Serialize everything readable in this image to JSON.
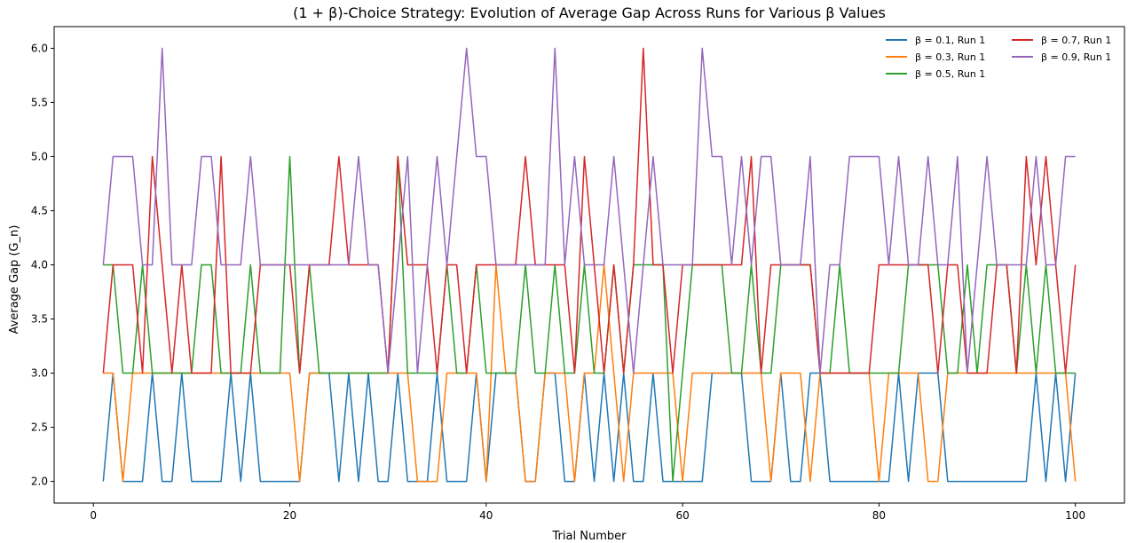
{
  "chart_data": {
    "type": "line",
    "title": "(1 + β)-Choice Strategy: Evolution of Average Gap Across Runs for Various β Values",
    "xlabel": "Trial Number",
    "ylabel": "Average Gap (G_n)",
    "xlim": [
      -4,
      105
    ],
    "ylim": [
      1.8,
      6.2
    ],
    "xticks": [
      0,
      20,
      40,
      60,
      80,
      100
    ],
    "yticks": [
      2.0,
      2.5,
      3.0,
      3.5,
      4.0,
      4.5,
      5.0,
      5.5,
      6.0
    ],
    "ytick_labels": [
      "2.0",
      "2.5",
      "3.0",
      "3.5",
      "4.0",
      "4.5",
      "5.0",
      "5.5",
      "6.0"
    ],
    "grid": false,
    "legend_position": "top-right",
    "legend_columns": 2,
    "x": [
      1,
      2,
      3,
      4,
      5,
      6,
      7,
      8,
      9,
      10,
      11,
      12,
      13,
      14,
      15,
      16,
      17,
      18,
      19,
      20,
      21,
      22,
      23,
      24,
      25,
      26,
      27,
      28,
      29,
      30,
      31,
      32,
      33,
      34,
      35,
      36,
      37,
      38,
      39,
      40,
      41,
      42,
      43,
      44,
      45,
      46,
      47,
      48,
      49,
      50,
      51,
      52,
      53,
      54,
      55,
      56,
      57,
      58,
      59,
      60,
      61,
      62,
      63,
      64,
      65,
      66,
      67,
      68,
      69,
      70,
      71,
      72,
      73,
      74,
      75,
      76,
      77,
      78,
      79,
      80,
      81,
      82,
      83,
      84,
      85,
      86,
      87,
      88,
      89,
      90,
      91,
      92,
      93,
      94,
      95,
      96,
      97,
      98,
      99,
      100
    ],
    "series": [
      {
        "name": "β = 0.1, Run 1",
        "color": "#1f77b4",
        "values": [
          2,
          3,
          2,
          2,
          2,
          3,
          2,
          2,
          3,
          2,
          2,
          2,
          2,
          3,
          2,
          3,
          2,
          2,
          2,
          2,
          2,
          3,
          3,
          3,
          2,
          3,
          2,
          3,
          2,
          2,
          3,
          2,
          2,
          2,
          3,
          2,
          2,
          2,
          3,
          2,
          3,
          3,
          3,
          2,
          2,
          3,
          3,
          2,
          2,
          3,
          2,
          3,
          2,
          3,
          2,
          2,
          3,
          2,
          2,
          2,
          2,
          2,
          3,
          3,
          3,
          3,
          2,
          2,
          2,
          3,
          2,
          2,
          3,
          3,
          2,
          2,
          2,
          2,
          2,
          2,
          2,
          3,
          2,
          3,
          3,
          3,
          2,
          2,
          2,
          2,
          2,
          2,
          2,
          2,
          2,
          3,
          2,
          3,
          2,
          3
        ]
      },
      {
        "name": "β = 0.3, Run 1",
        "color": "#ff7f0e",
        "values": [
          3,
          3,
          2,
          3,
          3,
          3,
          3,
          3,
          3,
          3,
          3,
          3,
          3,
          3,
          3,
          3,
          3,
          3,
          3,
          3,
          2,
          3,
          3,
          3,
          3,
          3,
          3,
          3,
          3,
          3,
          3,
          3,
          2,
          2,
          2,
          3,
          3,
          3,
          3,
          2,
          4,
          3,
          3,
          2,
          2,
          3,
          3,
          3,
          2,
          3,
          3,
          4,
          3,
          2,
          3,
          3,
          3,
          3,
          3,
          2,
          3,
          3,
          3,
          3,
          3,
          3,
          3,
          3,
          2,
          3,
          3,
          3,
          2,
          3,
          3,
          3,
          3,
          3,
          3,
          2,
          3,
          3,
          3,
          3,
          2,
          2,
          3,
          3,
          3,
          3,
          3,
          3,
          3,
          3,
          3,
          3,
          3,
          3,
          3,
          2
        ]
      },
      {
        "name": "β = 0.5, Run 1",
        "color": "#2ca02c",
        "values": [
          4,
          4,
          3,
          3,
          4,
          3,
          3,
          3,
          3,
          3,
          4,
          4,
          3,
          3,
          3,
          4,
          3,
          3,
          3,
          5,
          3,
          4,
          3,
          3,
          3,
          3,
          3,
          3,
          3,
          3,
          5,
          3,
          3,
          3,
          3,
          4,
          3,
          3,
          4,
          3,
          3,
          3,
          3,
          4,
          3,
          3,
          4,
          3,
          3,
          4,
          3,
          3,
          4,
          3,
          4,
          4,
          4,
          4,
          2,
          3,
          4,
          4,
          4,
          4,
          3,
          3,
          4,
          3,
          3,
          4,
          4,
          4,
          4,
          3,
          3,
          4,
          3,
          3,
          3,
          3,
          3,
          3,
          4,
          4,
          4,
          4,
          3,
          3,
          4,
          3,
          4,
          4,
          4,
          3,
          4,
          3,
          4,
          3,
          3,
          3
        ]
      },
      {
        "name": "β = 0.7, Run 1",
        "color": "#d62728",
        "values": [
          3,
          4,
          4,
          4,
          3,
          5,
          4,
          3,
          4,
          3,
          3,
          3,
          5,
          3,
          3,
          3,
          4,
          4,
          4,
          4,
          3,
          4,
          4,
          4,
          5,
          4,
          4,
          4,
          4,
          3,
          5,
          4,
          4,
          4,
          3,
          4,
          4,
          3,
          4,
          4,
          4,
          4,
          4,
          5,
          4,
          4,
          4,
          4,
          3,
          5,
          4,
          3,
          4,
          3,
          4,
          6,
          4,
          4,
          3,
          4,
          4,
          4,
          4,
          4,
          4,
          4,
          5,
          3,
          4,
          4,
          4,
          4,
          4,
          3,
          3,
          3,
          3,
          3,
          3,
          4,
          4,
          4,
          4,
          4,
          4,
          3,
          4,
          4,
          3,
          3,
          3,
          4,
          4,
          3,
          5,
          4,
          5,
          4,
          3,
          4
        ]
      },
      {
        "name": "β = 0.9, Run 1",
        "color": "#9467bd",
        "values": [
          4,
          5,
          5,
          5,
          4,
          4,
          6,
          4,
          4,
          4,
          5,
          5,
          4,
          4,
          4,
          5,
          4,
          4,
          4,
          4,
          4,
          4,
          4,
          4,
          4,
          4,
          5,
          4,
          4,
          3,
          4,
          5,
          3,
          4,
          5,
          4,
          5,
          6,
          5,
          5,
          4,
          4,
          4,
          4,
          4,
          4,
          6,
          4,
          5,
          4,
          4,
          4,
          5,
          4,
          3,
          4,
          5,
          4,
          4,
          4,
          4,
          6,
          5,
          5,
          4,
          5,
          4,
          5,
          5,
          4,
          4,
          4,
          5,
          3,
          4,
          4,
          5,
          5,
          5,
          5,
          4,
          5,
          4,
          4,
          5,
          4,
          4,
          5,
          3,
          4,
          5,
          4,
          4,
          4,
          4,
          5,
          4,
          4,
          5,
          5
        ]
      }
    ]
  }
}
